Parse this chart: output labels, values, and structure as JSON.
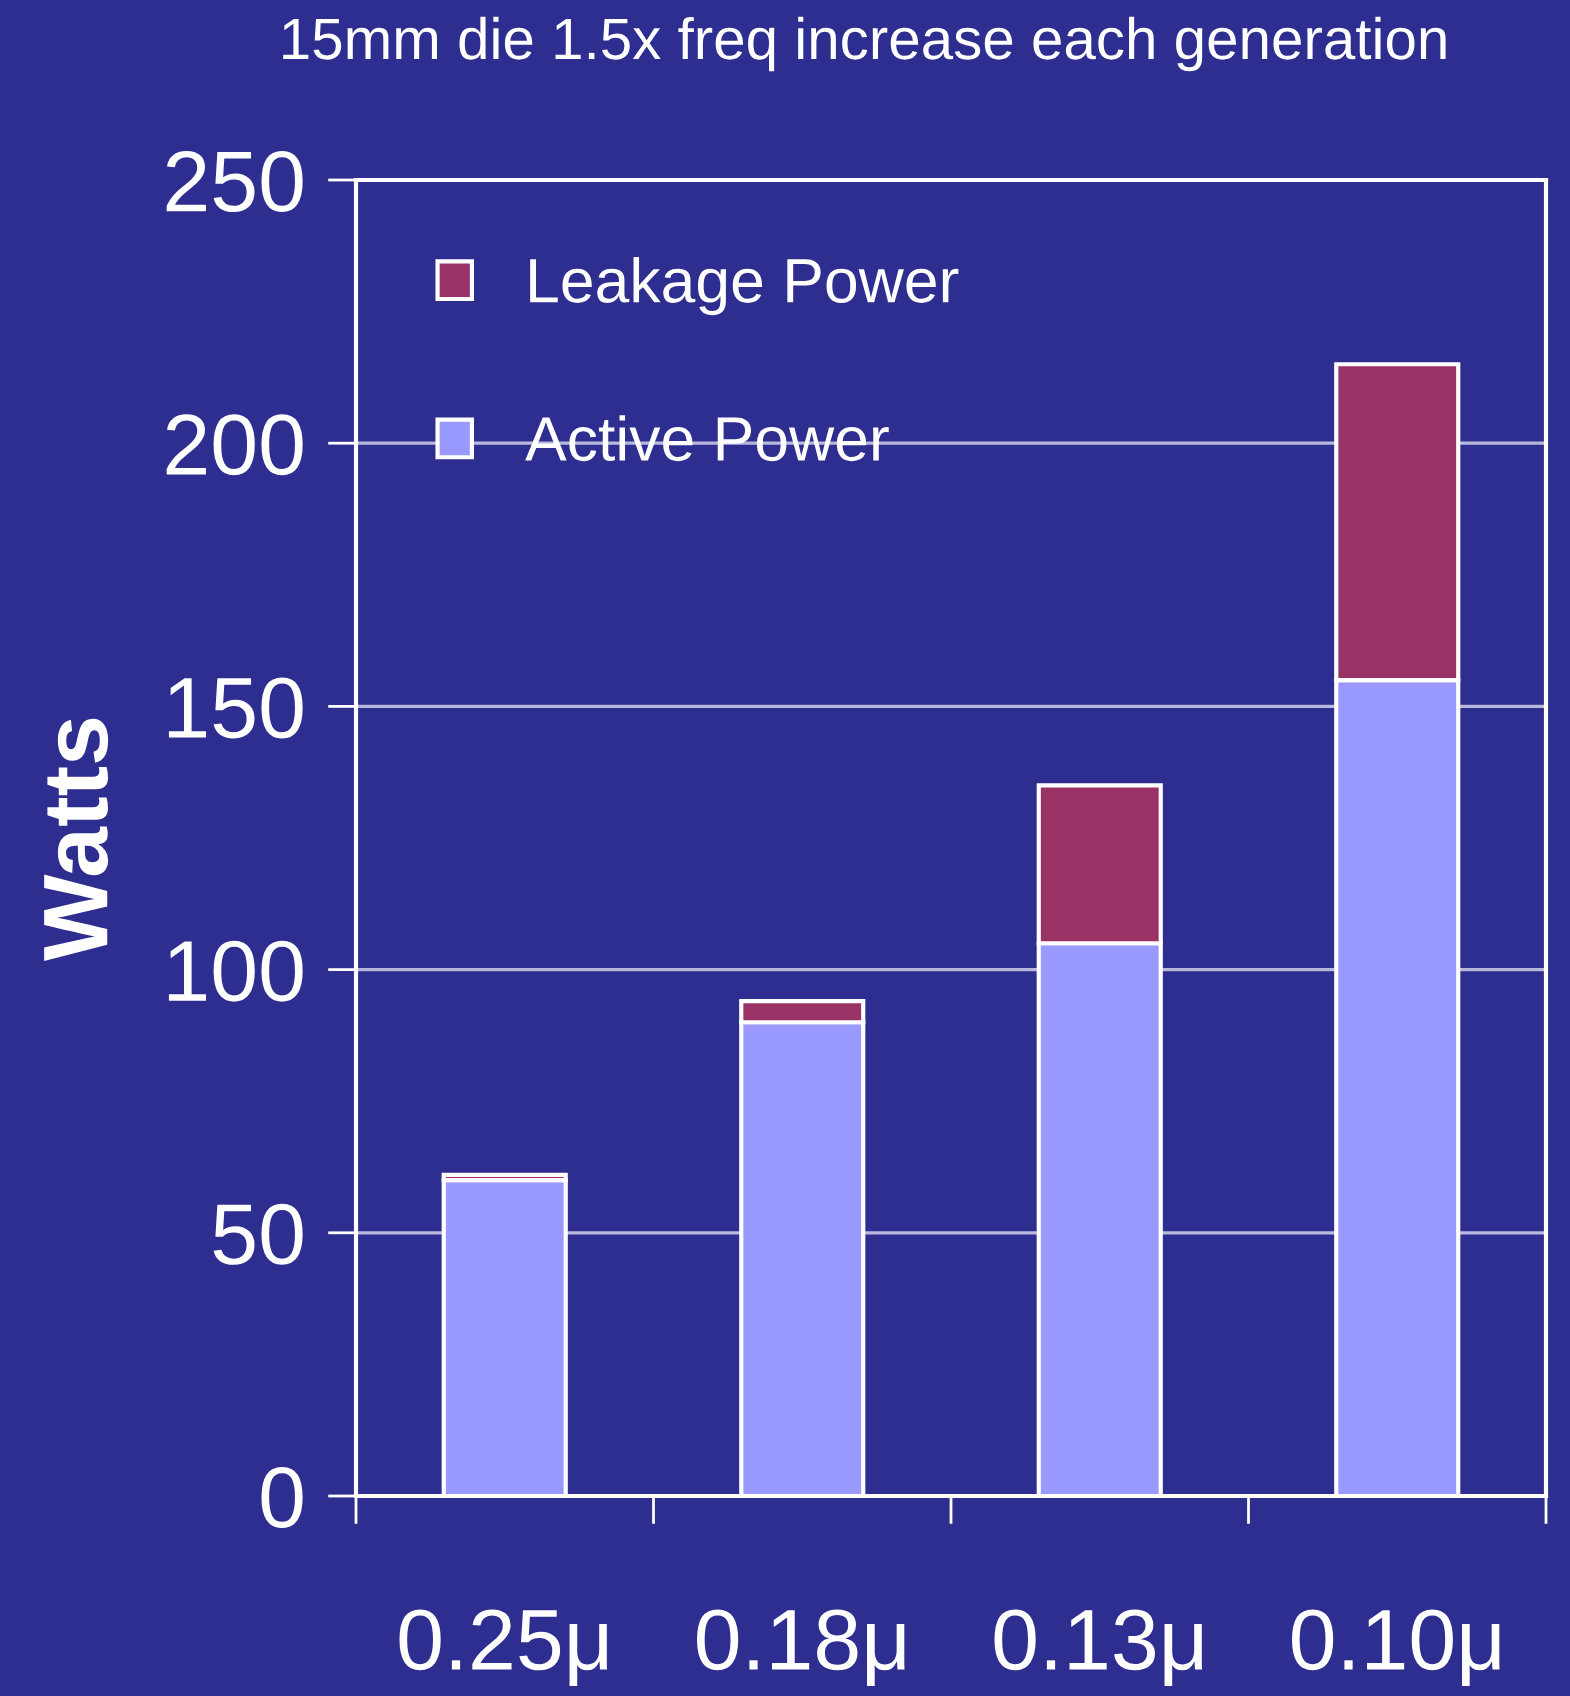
{
  "chart_data": {
    "type": "bar",
    "title": "15mm die 1.5x freq increase each generation",
    "ylabel": "Watts",
    "categories": [
      "0.25μ",
      "0.18μ",
      "0.13μ",
      "0.10μ"
    ],
    "stacked": true,
    "series": [
      {
        "name": "Active Power",
        "color": "#9999ff",
        "values": [
          60,
          90,
          105,
          155
        ]
      },
      {
        "name": "Leakage Power",
        "color": "#993366",
        "values": [
          1,
          4,
          30,
          60
        ]
      }
    ],
    "ylim": [
      0,
      250
    ],
    "yticks": [
      0,
      50,
      100,
      150,
      200,
      250
    ],
    "grid": "y",
    "legend": "top left"
  }
}
